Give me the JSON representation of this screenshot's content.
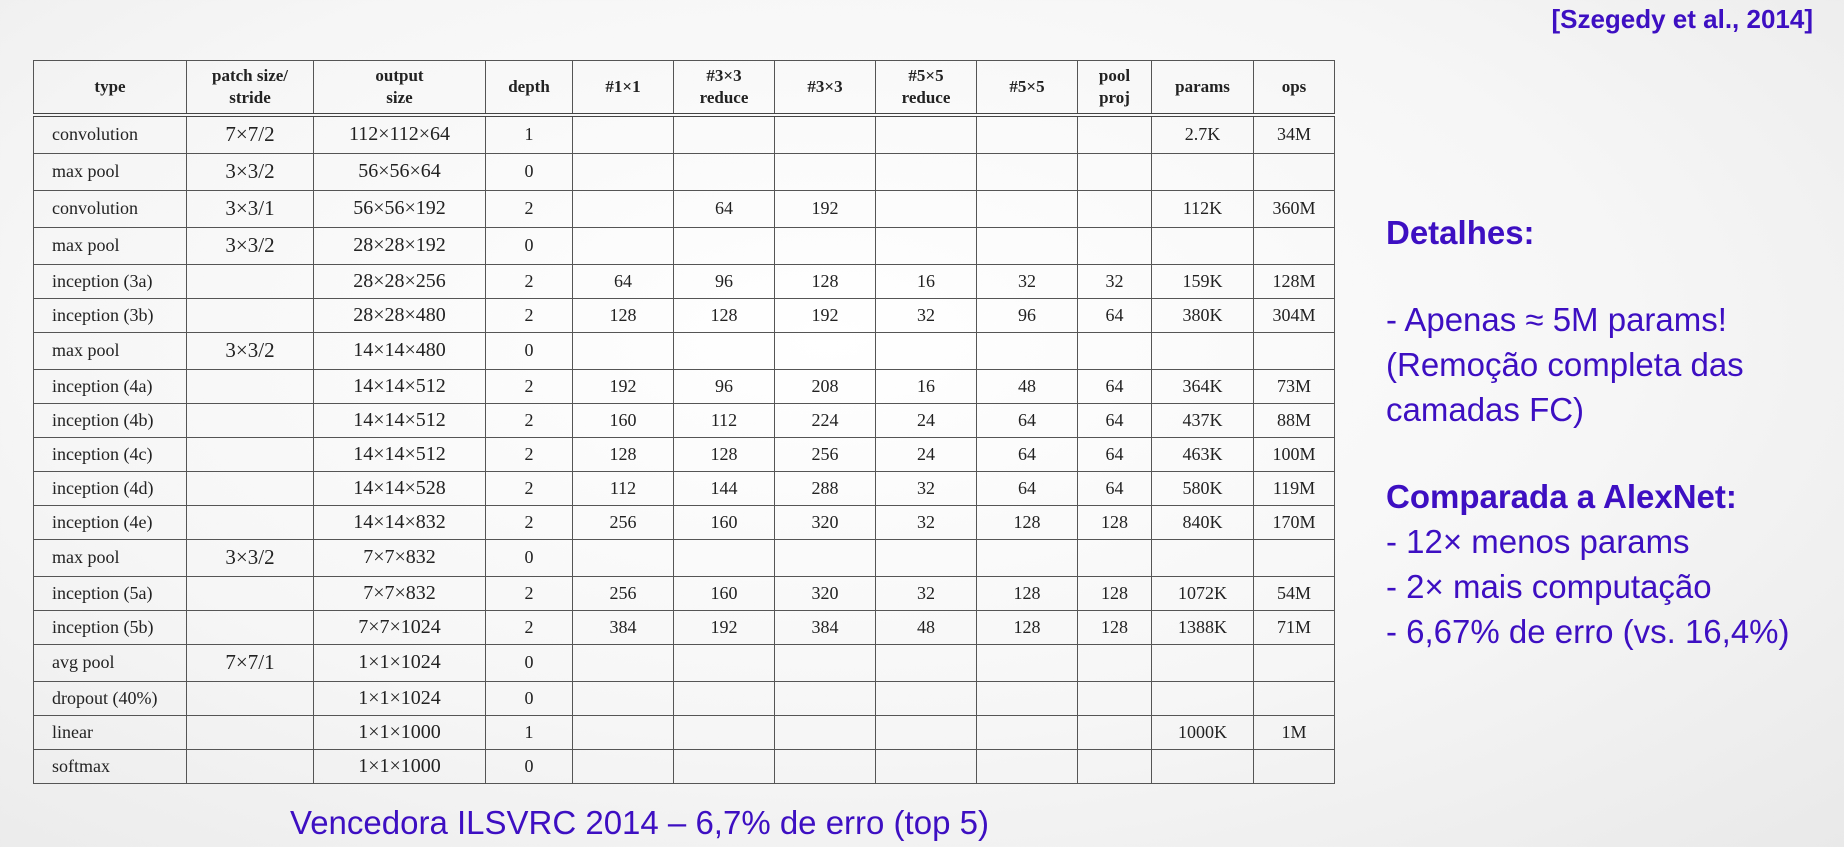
{
  "citation": "[Szegedy et al., 2014]",
  "table": {
    "headers": [
      [
        "type"
      ],
      [
        "patch size/",
        "stride"
      ],
      [
        "output",
        "size"
      ],
      [
        "depth"
      ],
      [
        "#1×1"
      ],
      [
        "#3×3",
        "reduce"
      ],
      [
        "#3×3"
      ],
      [
        "#5×5",
        "reduce"
      ],
      [
        "#5×5"
      ],
      [
        "pool",
        "proj"
      ],
      [
        "params"
      ],
      [
        "ops"
      ]
    ],
    "rows": [
      [
        "convolution",
        "7×7/2",
        "112×112×64",
        "1",
        "",
        "",
        "",
        "",
        "",
        "",
        "2.7K",
        "34M"
      ],
      [
        "max pool",
        "3×3/2",
        "56×56×64",
        "0",
        "",
        "",
        "",
        "",
        "",
        "",
        "",
        ""
      ],
      [
        "convolution",
        "3×3/1",
        "56×56×192",
        "2",
        "",
        "64",
        "192",
        "",
        "",
        "",
        "112K",
        "360M"
      ],
      [
        "max pool",
        "3×3/2",
        "28×28×192",
        "0",
        "",
        "",
        "",
        "",
        "",
        "",
        "",
        ""
      ],
      [
        "inception (3a)",
        "",
        "28×28×256",
        "2",
        "64",
        "96",
        "128",
        "16",
        "32",
        "32",
        "159K",
        "128M"
      ],
      [
        "inception (3b)",
        "",
        "28×28×480",
        "2",
        "128",
        "128",
        "192",
        "32",
        "96",
        "64",
        "380K",
        "304M"
      ],
      [
        "max pool",
        "3×3/2",
        "14×14×480",
        "0",
        "",
        "",
        "",
        "",
        "",
        "",
        "",
        ""
      ],
      [
        "inception (4a)",
        "",
        "14×14×512",
        "2",
        "192",
        "96",
        "208",
        "16",
        "48",
        "64",
        "364K",
        "73M"
      ],
      [
        "inception (4b)",
        "",
        "14×14×512",
        "2",
        "160",
        "112",
        "224",
        "24",
        "64",
        "64",
        "437K",
        "88M"
      ],
      [
        "inception (4c)",
        "",
        "14×14×512",
        "2",
        "128",
        "128",
        "256",
        "24",
        "64",
        "64",
        "463K",
        "100M"
      ],
      [
        "inception (4d)",
        "",
        "14×14×528",
        "2",
        "112",
        "144",
        "288",
        "32",
        "64",
        "64",
        "580K",
        "119M"
      ],
      [
        "inception (4e)",
        "",
        "14×14×832",
        "2",
        "256",
        "160",
        "320",
        "32",
        "128",
        "128",
        "840K",
        "170M"
      ],
      [
        "max pool",
        "3×3/2",
        "7×7×832",
        "0",
        "",
        "",
        "",
        "",
        "",
        "",
        "",
        ""
      ],
      [
        "inception (5a)",
        "",
        "7×7×832",
        "2",
        "256",
        "160",
        "320",
        "32",
        "128",
        "128",
        "1072K",
        "54M"
      ],
      [
        "inception (5b)",
        "",
        "7×7×1024",
        "2",
        "384",
        "192",
        "384",
        "48",
        "128",
        "128",
        "1388K",
        "71M"
      ],
      [
        "avg pool",
        "7×7/1",
        "1×1×1024",
        "0",
        "",
        "",
        "",
        "",
        "",
        "",
        "",
        ""
      ],
      [
        "dropout (40%)",
        "",
        "1×1×1024",
        "0",
        "",
        "",
        "",
        "",
        "",
        "",
        "",
        ""
      ],
      [
        "linear",
        "",
        "1×1×1000",
        "1",
        "",
        "",
        "",
        "",
        "",
        "",
        "1000K",
        "1M"
      ],
      [
        "softmax",
        "",
        "1×1×1000",
        "0",
        "",
        "",
        "",
        "",
        "",
        "",
        "",
        ""
      ]
    ]
  },
  "side": {
    "details_heading": "Detalhes:",
    "details_line1": "- Apenas ≈ 5M params!",
    "details_line2": "(Remoção completa das",
    "details_line3": "camadas FC)",
    "compare_heading": "Comparada a AlexNet:",
    "compare_line1": "- 12× menos params",
    "compare_line2": "- 2× mais computação",
    "compare_line3": "- 6,67% de erro (vs. 16,4%)"
  },
  "footer": "Vencedora ILSVRC 2014 – 6,7% de erro (top 5)",
  "colors": {
    "accent": "#3d0fc2",
    "table_border": "#555555",
    "table_text": "#222222"
  }
}
